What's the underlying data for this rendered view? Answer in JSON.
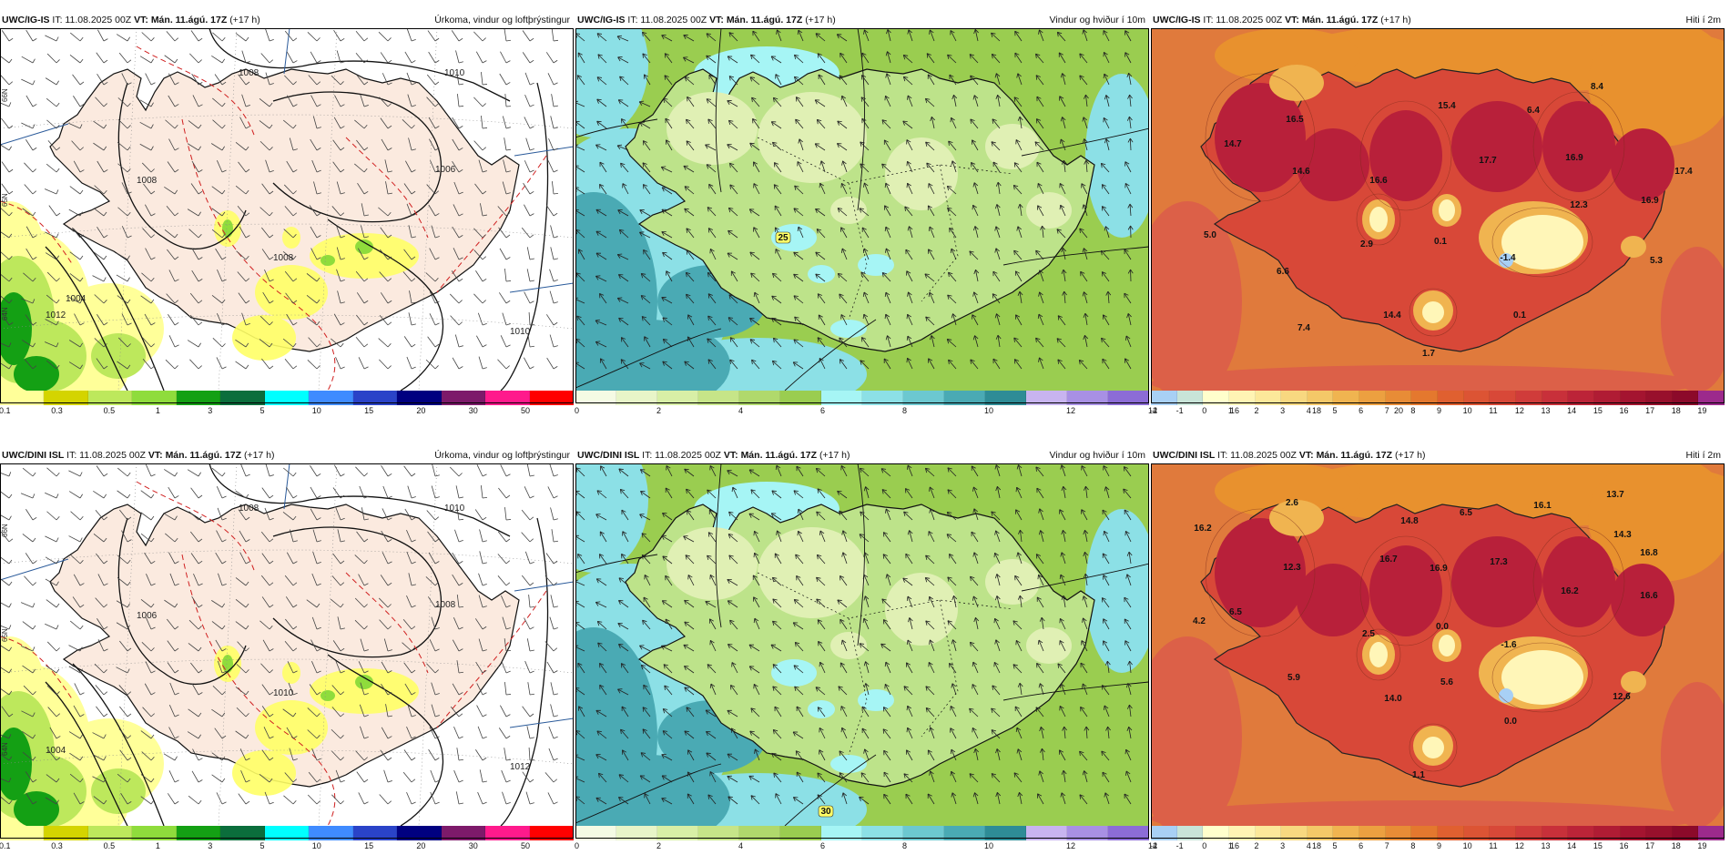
{
  "panels": [
    {
      "model": "UWC/IG-IS",
      "it": "IT: 11.08.2025 00Z",
      "vt_label": "VT:",
      "vt": "Mán. 11.ágú. 17Z",
      "lead": "(+17 h)",
      "title": "Úrkoma, vindur og loftþrýstingur",
      "kind": "precip",
      "isobars": [
        "1008",
        "1010",
        "1008",
        "1006",
        "1008",
        "1010",
        "1012",
        "1004"
      ],
      "ticks": [
        "0.1",
        "0.3",
        "0.5",
        "1",
        "3",
        "5",
        "10",
        "15",
        "20",
        "30",
        "50"
      ],
      "colors": [
        "#ffff99",
        "#d4d400",
        "#bde85c",
        "#8fdc3c",
        "#14a014",
        "#0b6e3c",
        "#00ffff",
        "#3f8bff",
        "#2a43c8",
        "#000080",
        "#7d1a6a",
        "#ff1a8c",
        "#ff0000"
      ],
      "lat_labels": [
        "66N",
        "65N",
        "64N"
      ]
    },
    {
      "model": "UWC/IG-IS",
      "it": "IT: 11.08.2025 00Z",
      "vt_label": "VT:",
      "vt": "Mán. 11.ágú. 17Z",
      "lead": "(+17 h)",
      "title": "Vindur og hviður í 10m",
      "kind": "wind",
      "ticks": [
        "0",
        "2",
        "4",
        "6",
        "8",
        "10",
        "12",
        "14",
        "16",
        "18",
        "20"
      ],
      "colors": [
        "#f5fbe4",
        "#e8f5c8",
        "#d8efa6",
        "#c6e588",
        "#b0d96c",
        "#9acd50",
        "#a6f5f5",
        "#8ce0e6",
        "#6cc8d0",
        "#4aaab4",
        "#2e8c96",
        "#c8b4f0",
        "#a890e4",
        "#8c6cd6"
      ],
      "labels": [
        {
          "t": "25"
        }
      ]
    },
    {
      "model": "UWC/IG-IS",
      "it": "IT: 11.08.2025 00Z",
      "vt_label": "VT:",
      "vt": "Mán. 11.ágú. 17Z",
      "lead": "(+17 h)",
      "title": "Hiti í 2m",
      "kind": "temp",
      "ticks": [
        "-2",
        "-1",
        "0",
        "1",
        "2",
        "3",
        "4",
        "5",
        "6",
        "7",
        "8",
        "9",
        "10",
        "11",
        "12",
        "13",
        "14",
        "15",
        "16",
        "17",
        "18",
        "19"
      ],
      "colors": [
        "#a8d0f5",
        "#c8e4d8",
        "#ffffcc",
        "#fff4b4",
        "#fce89a",
        "#f8d880",
        "#f4c868",
        "#f0b450",
        "#eca040",
        "#e88c36",
        "#e4782e",
        "#e06030",
        "#dc5434",
        "#d84838",
        "#d03c3a",
        "#c8303a",
        "#bc2438",
        "#b01c34",
        "#a41430",
        "#98102c",
        "#8c0a2a",
        "#9c2a8c"
      ],
      "labels": [
        {
          "t": "8.4"
        },
        {
          "t": "15.4"
        },
        {
          "t": "6.4"
        },
        {
          "t": "16.5"
        },
        {
          "t": "14.7"
        },
        {
          "t": "14.6"
        },
        {
          "t": "16.6"
        },
        {
          "t": "17.7"
        },
        {
          "t": "16.9"
        },
        {
          "t": "17.4"
        },
        {
          "t": "12.3"
        },
        {
          "t": "16.9"
        },
        {
          "t": "5.0"
        },
        {
          "t": "2.9"
        },
        {
          "t": "0.1"
        },
        {
          "t": "-1.4"
        },
        {
          "t": "5.3"
        },
        {
          "t": "6.6"
        },
        {
          "t": "14.4"
        },
        {
          "t": "7.4"
        },
        {
          "t": "0.1"
        },
        {
          "t": "1.7"
        }
      ]
    },
    {
      "model": "UWC/DINI ISL",
      "it": "IT: 11.08.2025 00Z",
      "vt_label": "VT:",
      "vt": "Mán. 11.ágú. 17Z",
      "lead": "(+17 h)",
      "title": "Úrkoma, vindur og loftþrýstingur",
      "kind": "precip",
      "isobars": [
        "1008",
        "1010",
        "1006",
        "1008",
        "1010",
        "1012",
        "1004"
      ],
      "ticks": [
        "0.1",
        "0.3",
        "0.5",
        "1",
        "3",
        "5",
        "10",
        "15",
        "20",
        "30",
        "50"
      ],
      "colors": [
        "#ffff99",
        "#d4d400",
        "#bde85c",
        "#8fdc3c",
        "#14a014",
        "#0b6e3c",
        "#00ffff",
        "#3f8bff",
        "#2a43c8",
        "#000080",
        "#7d1a6a",
        "#ff1a8c",
        "#ff0000"
      ],
      "lat_labels": [
        "66N",
        "65N",
        "64N"
      ]
    },
    {
      "model": "UWC/DINI ISL",
      "it": "IT: 11.08.2025 00Z",
      "vt_label": "VT:",
      "vt": "Mán. 11.ágú. 17Z",
      "lead": "(+17 h)",
      "title": "Vindur og hviður í 10m",
      "kind": "wind",
      "ticks": [
        "0",
        "2",
        "4",
        "6",
        "8",
        "10",
        "12",
        "14",
        "16",
        "18"
      ],
      "colors": [
        "#f5fbe4",
        "#e8f5c8",
        "#d8efa6",
        "#c6e588",
        "#b0d96c",
        "#9acd50",
        "#a6f5f5",
        "#8ce0e6",
        "#6cc8d0",
        "#4aaab4",
        "#2e8c96",
        "#c8b4f0",
        "#a890e4",
        "#8c6cd6"
      ],
      "labels": [
        {
          "t": "30"
        }
      ]
    },
    {
      "model": "UWC/DINI ISL",
      "it": "IT: 11.08.2025 00Z",
      "vt_label": "VT:",
      "vt": "Mán. 11.ágú. 17Z",
      "lead": "(+17 h)",
      "title": "Hiti í 2m",
      "kind": "temp",
      "ticks": [
        "-2",
        "-1",
        "0",
        "1",
        "2",
        "3",
        "4",
        "5",
        "6",
        "7",
        "8",
        "9",
        "10",
        "11",
        "12",
        "13",
        "14",
        "15",
        "16",
        "17",
        "18",
        "19"
      ],
      "colors": [
        "#a8d0f5",
        "#c8e4d8",
        "#ffffcc",
        "#fff4b4",
        "#fce89a",
        "#f8d880",
        "#f4c868",
        "#f0b450",
        "#eca040",
        "#e88c36",
        "#e4782e",
        "#e06030",
        "#dc5434",
        "#d84838",
        "#d03c3a",
        "#c8303a",
        "#bc2438",
        "#b01c34",
        "#a41430",
        "#98102c",
        "#8c0a2a",
        "#9c2a8c"
      ],
      "labels": [
        {
          "t": "2.6"
        },
        {
          "t": "13.7"
        },
        {
          "t": "16.1"
        },
        {
          "t": "6.5"
        },
        {
          "t": "14.8"
        },
        {
          "t": "16.2"
        },
        {
          "t": "14.3"
        },
        {
          "t": "16.8"
        },
        {
          "t": "12.3"
        },
        {
          "t": "16.7"
        },
        {
          "t": "16.9"
        },
        {
          "t": "17.3"
        },
        {
          "t": "16.2"
        },
        {
          "t": "16.6"
        },
        {
          "t": "6.5"
        },
        {
          "t": "4.2"
        },
        {
          "t": "2.5"
        },
        {
          "t": "0.0"
        },
        {
          "t": "-1.6"
        },
        {
          "t": "5.9"
        },
        {
          "t": "5.6"
        },
        {
          "t": "12.6"
        },
        {
          "t": "14.0"
        },
        {
          "t": "0.0"
        },
        {
          "t": "1.1"
        }
      ]
    }
  ]
}
